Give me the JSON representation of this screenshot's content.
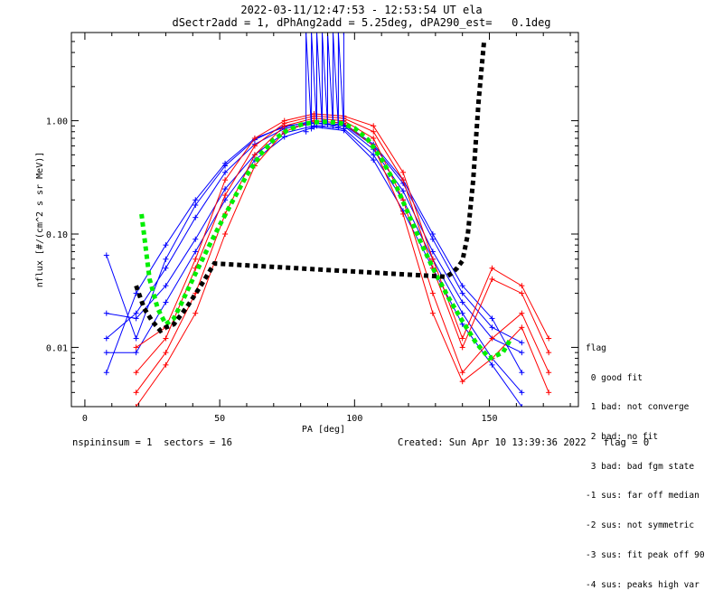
{
  "header": {
    "title_line1": "2022-03-11/12:47:53 - 12:53:54 UT ela",
    "title_line2": "dSectr2add = 1, dPhAng2add = 5.25deg, dPA290_est=   0.1deg"
  },
  "legend": {
    "title": "flag",
    "items": [
      " 0 good fit",
      " 1 bad: not converge",
      " 2 bad: no fit",
      " 3 bad: bad fgm state",
      "-1 sus: far off median",
      "-2 sus: not symmetric",
      "-3 sus: fit peak off 90",
      "-4 sus: peaks high var"
    ]
  },
  "footer": {
    "left": "nspininsum = 1  sectors = 16",
    "right": "Created: Sun Apr 10 13:39:36 2022   flag = 0"
  },
  "colors": {
    "blue_series": "#0000ff",
    "red_series": "#ff0000",
    "fit_green": "#00ee00",
    "fit_black": "#000000",
    "axes": "#000000"
  },
  "chart_data": {
    "type": "line",
    "xlabel": "PA [deg]",
    "ylabel": "nflux [#/(cm^2 s sr MeV)]",
    "x_scale": "linear",
    "y_scale": "log",
    "xlim": [
      -5,
      183
    ],
    "ylim": [
      0.003,
      6
    ],
    "xticks": [
      0,
      50,
      100,
      150
    ],
    "xtick_labels": [
      "0",
      "50",
      "100",
      "150"
    ],
    "yticks": [
      0.01,
      0.1,
      1.0
    ],
    "ytick_labels": [
      "0.01",
      "0.10",
      "1.00"
    ],
    "grid": false,
    "series": [
      {
        "name": "",
        "color": "#0000ff",
        "points": [
          [
            8,
            0.012
          ],
          [
            19,
            0.02
          ],
          [
            30,
            0.05
          ],
          [
            41,
            0.14
          ],
          [
            52,
            0.35
          ],
          [
            63,
            0.62
          ],
          [
            74,
            0.85
          ],
          [
            85,
            0.95
          ],
          [
            96,
            0.9
          ],
          [
            107,
            0.56
          ],
          [
            118,
            0.24
          ],
          [
            129,
            0.07
          ],
          [
            140,
            0.025
          ],
          [
            151,
            0.012
          ],
          [
            162,
            0.009
          ]
        ]
      },
      {
        "name": "",
        "color": "#0000ff",
        "points": [
          [
            8,
            0.006
          ],
          [
            19,
            0.03
          ],
          [
            30,
            0.08
          ],
          [
            41,
            0.2
          ],
          [
            52,
            0.42
          ],
          [
            63,
            0.7
          ],
          [
            74,
            0.88
          ],
          [
            85,
            1.0
          ],
          [
            96,
            0.95
          ],
          [
            107,
            0.62
          ],
          [
            118,
            0.3
          ],
          [
            129,
            0.1
          ],
          [
            140,
            0.035
          ],
          [
            151,
            0.018
          ],
          [
            162,
            0.006
          ]
        ]
      },
      {
        "name": "",
        "color": "#0000ff",
        "points": [
          [
            8,
            0.02
          ],
          [
            19,
            0.018
          ],
          [
            30,
            0.035
          ],
          [
            41,
            0.09
          ],
          [
            52,
            0.25
          ],
          [
            63,
            0.5
          ],
          [
            74,
            0.78
          ],
          [
            85,
            0.9
          ],
          [
            96,
            0.85
          ],
          [
            107,
            0.5
          ],
          [
            118,
            0.2
          ],
          [
            129,
            0.06
          ],
          [
            140,
            0.02
          ],
          [
            151,
            0.008
          ],
          [
            162,
            0.004
          ]
        ]
      },
      {
        "name": "",
        "color": "#0000ff",
        "points": [
          [
            8,
            0.065
          ],
          [
            19,
            0.012
          ],
          [
            30,
            0.06
          ],
          [
            41,
            0.18
          ],
          [
            52,
            0.4
          ],
          [
            63,
            0.68
          ],
          [
            74,
            0.9
          ],
          [
            85,
            0.96
          ],
          [
            96,
            0.92
          ],
          [
            107,
            0.6
          ],
          [
            118,
            0.28
          ],
          [
            129,
            0.09
          ],
          [
            140,
            0.03
          ],
          [
            151,
            0.015
          ],
          [
            162,
            0.011
          ]
        ]
      },
      {
        "name": "",
        "color": "#0000ff",
        "points": [
          [
            8,
            0.009
          ],
          [
            19,
            0.009
          ],
          [
            30,
            0.025
          ],
          [
            41,
            0.07
          ],
          [
            52,
            0.2
          ],
          [
            63,
            0.45
          ],
          [
            74,
            0.72
          ],
          [
            85,
            0.88
          ],
          [
            96,
            0.82
          ],
          [
            107,
            0.45
          ],
          [
            118,
            0.16
          ],
          [
            129,
            0.05
          ],
          [
            140,
            0.016
          ],
          [
            151,
            0.007
          ],
          [
            162,
            0.003
          ]
        ]
      },
      {
        "name": "",
        "color": "#ff0000",
        "points": [
          [
            19,
            0.004
          ],
          [
            30,
            0.009
          ],
          [
            41,
            0.03
          ],
          [
            52,
            0.15
          ],
          [
            63,
            0.5
          ],
          [
            74,
            0.9
          ],
          [
            85,
            1.05
          ],
          [
            96,
            1.0
          ],
          [
            107,
            0.7
          ],
          [
            118,
            0.2
          ],
          [
            129,
            0.03
          ],
          [
            140,
            0.006
          ],
          [
            151,
            0.012
          ],
          [
            162,
            0.02
          ],
          [
            172,
            0.006
          ]
        ]
      },
      {
        "name": "",
        "color": "#ff0000",
        "points": [
          [
            19,
            0.006
          ],
          [
            30,
            0.012
          ],
          [
            41,
            0.05
          ],
          [
            52,
            0.22
          ],
          [
            63,
            0.6
          ],
          [
            74,
            0.95
          ],
          [
            85,
            1.1
          ],
          [
            96,
            1.05
          ],
          [
            107,
            0.8
          ],
          [
            118,
            0.3
          ],
          [
            129,
            0.05
          ],
          [
            140,
            0.01
          ],
          [
            151,
            0.04
          ],
          [
            162,
            0.03
          ],
          [
            172,
            0.009
          ]
        ]
      },
      {
        "name": "",
        "color": "#ff0000",
        "points": [
          [
            19,
            0.003
          ],
          [
            30,
            0.007
          ],
          [
            41,
            0.02
          ],
          [
            52,
            0.1
          ],
          [
            63,
            0.4
          ],
          [
            74,
            0.8
          ],
          [
            85,
            1.0
          ],
          [
            96,
            0.95
          ],
          [
            107,
            0.6
          ],
          [
            118,
            0.15
          ],
          [
            129,
            0.02
          ],
          [
            140,
            0.005
          ],
          [
            151,
            0.008
          ],
          [
            162,
            0.015
          ],
          [
            172,
            0.004
          ]
        ]
      },
      {
        "name": "",
        "color": "#ff0000",
        "points": [
          [
            19,
            0.01
          ],
          [
            30,
            0.015
          ],
          [
            41,
            0.06
          ],
          [
            52,
            0.3
          ],
          [
            63,
            0.7
          ],
          [
            74,
            1.0
          ],
          [
            85,
            1.15
          ],
          [
            96,
            1.1
          ],
          [
            107,
            0.9
          ],
          [
            118,
            0.35
          ],
          [
            129,
            0.06
          ],
          [
            140,
            0.012
          ],
          [
            151,
            0.05
          ],
          [
            162,
            0.035
          ],
          [
            172,
            0.012
          ]
        ]
      },
      {
        "name": "",
        "color": "#0000ff",
        "points": [
          [
            82,
            0.8
          ],
          [
            82,
            6
          ],
          [
            84,
            0.85
          ],
          [
            84,
            6
          ],
          [
            86,
            0.9
          ],
          [
            86,
            6
          ],
          [
            88,
            0.9
          ],
          [
            88,
            6
          ],
          [
            90,
            0.92
          ],
          [
            90,
            6
          ],
          [
            92,
            0.9
          ],
          [
            92,
            6
          ],
          [
            94,
            0.88
          ],
          [
            94,
            6
          ],
          [
            96,
            0.85
          ],
          [
            96,
            6
          ]
        ]
      },
      {
        "name": "",
        "color": "#00ee00",
        "points": [
          [
            21,
            0.15
          ],
          [
            24,
            0.04
          ],
          [
            27,
            0.022
          ],
          [
            30,
            0.016
          ],
          [
            33,
            0.018
          ],
          [
            36,
            0.025
          ],
          [
            40,
            0.04
          ],
          [
            45,
            0.07
          ],
          [
            50,
            0.12
          ],
          [
            55,
            0.2
          ],
          [
            60,
            0.33
          ],
          [
            65,
            0.5
          ],
          [
            70,
            0.68
          ],
          [
            75,
            0.82
          ],
          [
            80,
            0.92
          ],
          [
            85,
            0.97
          ],
          [
            90,
            0.98
          ],
          [
            95,
            0.95
          ],
          [
            100,
            0.86
          ],
          [
            105,
            0.68
          ],
          [
            110,
            0.46
          ],
          [
            115,
            0.28
          ],
          [
            120,
            0.15
          ],
          [
            125,
            0.08
          ],
          [
            130,
            0.045
          ],
          [
            135,
            0.027
          ],
          [
            140,
            0.017
          ],
          [
            145,
            0.011
          ],
          [
            150,
            0.008
          ],
          [
            155,
            0.009
          ],
          [
            158,
            0.012
          ]
        ]
      },
      {
        "name": "",
        "color": "#000000",
        "points": [
          [
            19,
            0.035
          ],
          [
            22,
            0.022
          ],
          [
            25,
            0.017
          ],
          [
            28,
            0.014
          ],
          [
            30,
            0.015
          ],
          [
            33,
            0.016
          ],
          [
            38,
            0.023
          ],
          [
            43,
            0.035
          ],
          [
            48,
            0.055
          ],
          [
            134,
            0.042
          ],
          [
            136,
            0.045
          ],
          [
            138,
            0.05
          ],
          [
            140,
            0.058
          ],
          [
            142,
            0.1
          ],
          [
            144,
            0.3
          ],
          [
            146,
            1.5
          ],
          [
            148,
            5.0
          ]
        ]
      }
    ]
  }
}
